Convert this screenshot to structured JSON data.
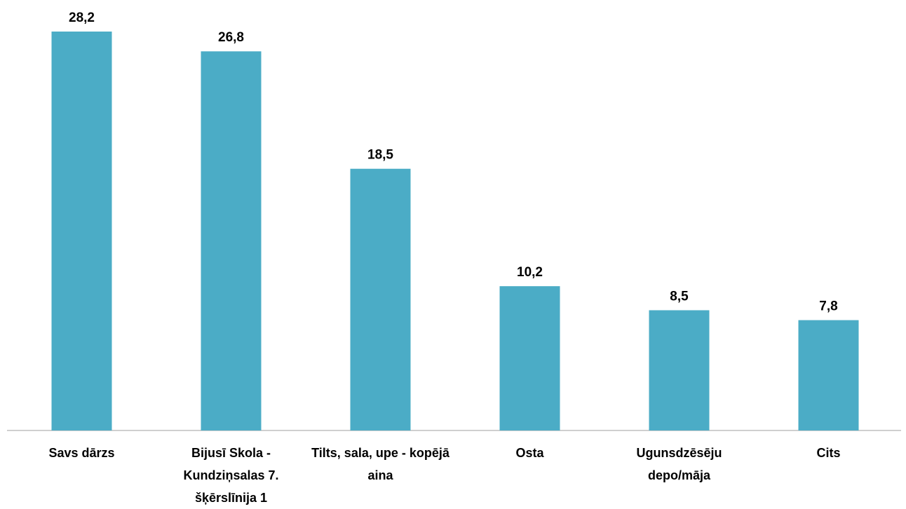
{
  "chart_data": {
    "type": "bar",
    "categories": [
      "Savs dārzs",
      "Bijusī Skola - Kundziņsalas 7. šķērslīnija 1",
      "Tilts, sala, upe - kopējā aina",
      "Osta",
      "Ugunsdzēsēju depo/māja",
      "Cits"
    ],
    "values": [
      28.2,
      26.8,
      18.5,
      10.2,
      8.5,
      7.8
    ],
    "value_labels": [
      "28,2",
      "26,8",
      "18,5",
      "10,2",
      "8,5",
      "7,8"
    ],
    "color": "#4bacc6"
  }
}
